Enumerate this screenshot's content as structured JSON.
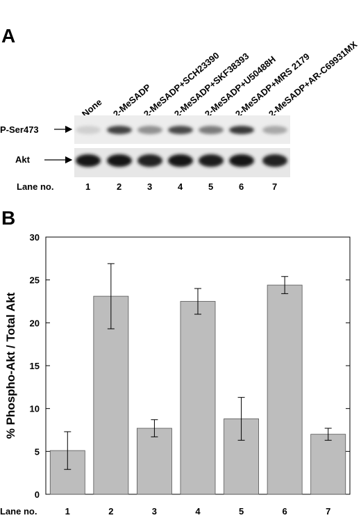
{
  "panel_a": {
    "letter": "A",
    "lanes": [
      "None",
      "2-MeSADP",
      "2-MeSADP+SCH23390",
      "2-MeSADP+SKF38393",
      "2-MeSADP+U50488H",
      "2-MeSADP+MRS 2179",
      "2-MeSADP+AR-C69931MX"
    ],
    "blot_rows": [
      {
        "label": "P-Ser473",
        "band_intensity": [
          0.12,
          0.75,
          0.4,
          0.72,
          0.5,
          0.8,
          0.3
        ]
      },
      {
        "label": "Akt",
        "band_intensity": [
          0.95,
          0.95,
          0.9,
          0.95,
          0.92,
          0.95,
          0.9
        ]
      }
    ],
    "lane_label": "Lane no.",
    "lane_numbers": [
      "1",
      "2",
      "3",
      "4",
      "5",
      "6",
      "7"
    ]
  },
  "panel_b": {
    "letter": "B"
  },
  "chart_data": {
    "type": "bar",
    "categories": [
      "1",
      "2",
      "3",
      "4",
      "5",
      "6",
      "7"
    ],
    "values": [
      5.1,
      23.1,
      7.7,
      22.5,
      8.8,
      24.4,
      7.0
    ],
    "errors": [
      2.2,
      3.8,
      1.0,
      1.5,
      2.5,
      1.0,
      0.7
    ],
    "xlabel": "Lane no.",
    "ylabel": "% Phospho-Akt / Total Akt",
    "ylim": [
      0,
      30
    ],
    "yticks": [
      "0",
      "5",
      "10",
      "15",
      "20",
      "25",
      "30"
    ],
    "bar_color": "#bdbdbd",
    "grid": false
  }
}
